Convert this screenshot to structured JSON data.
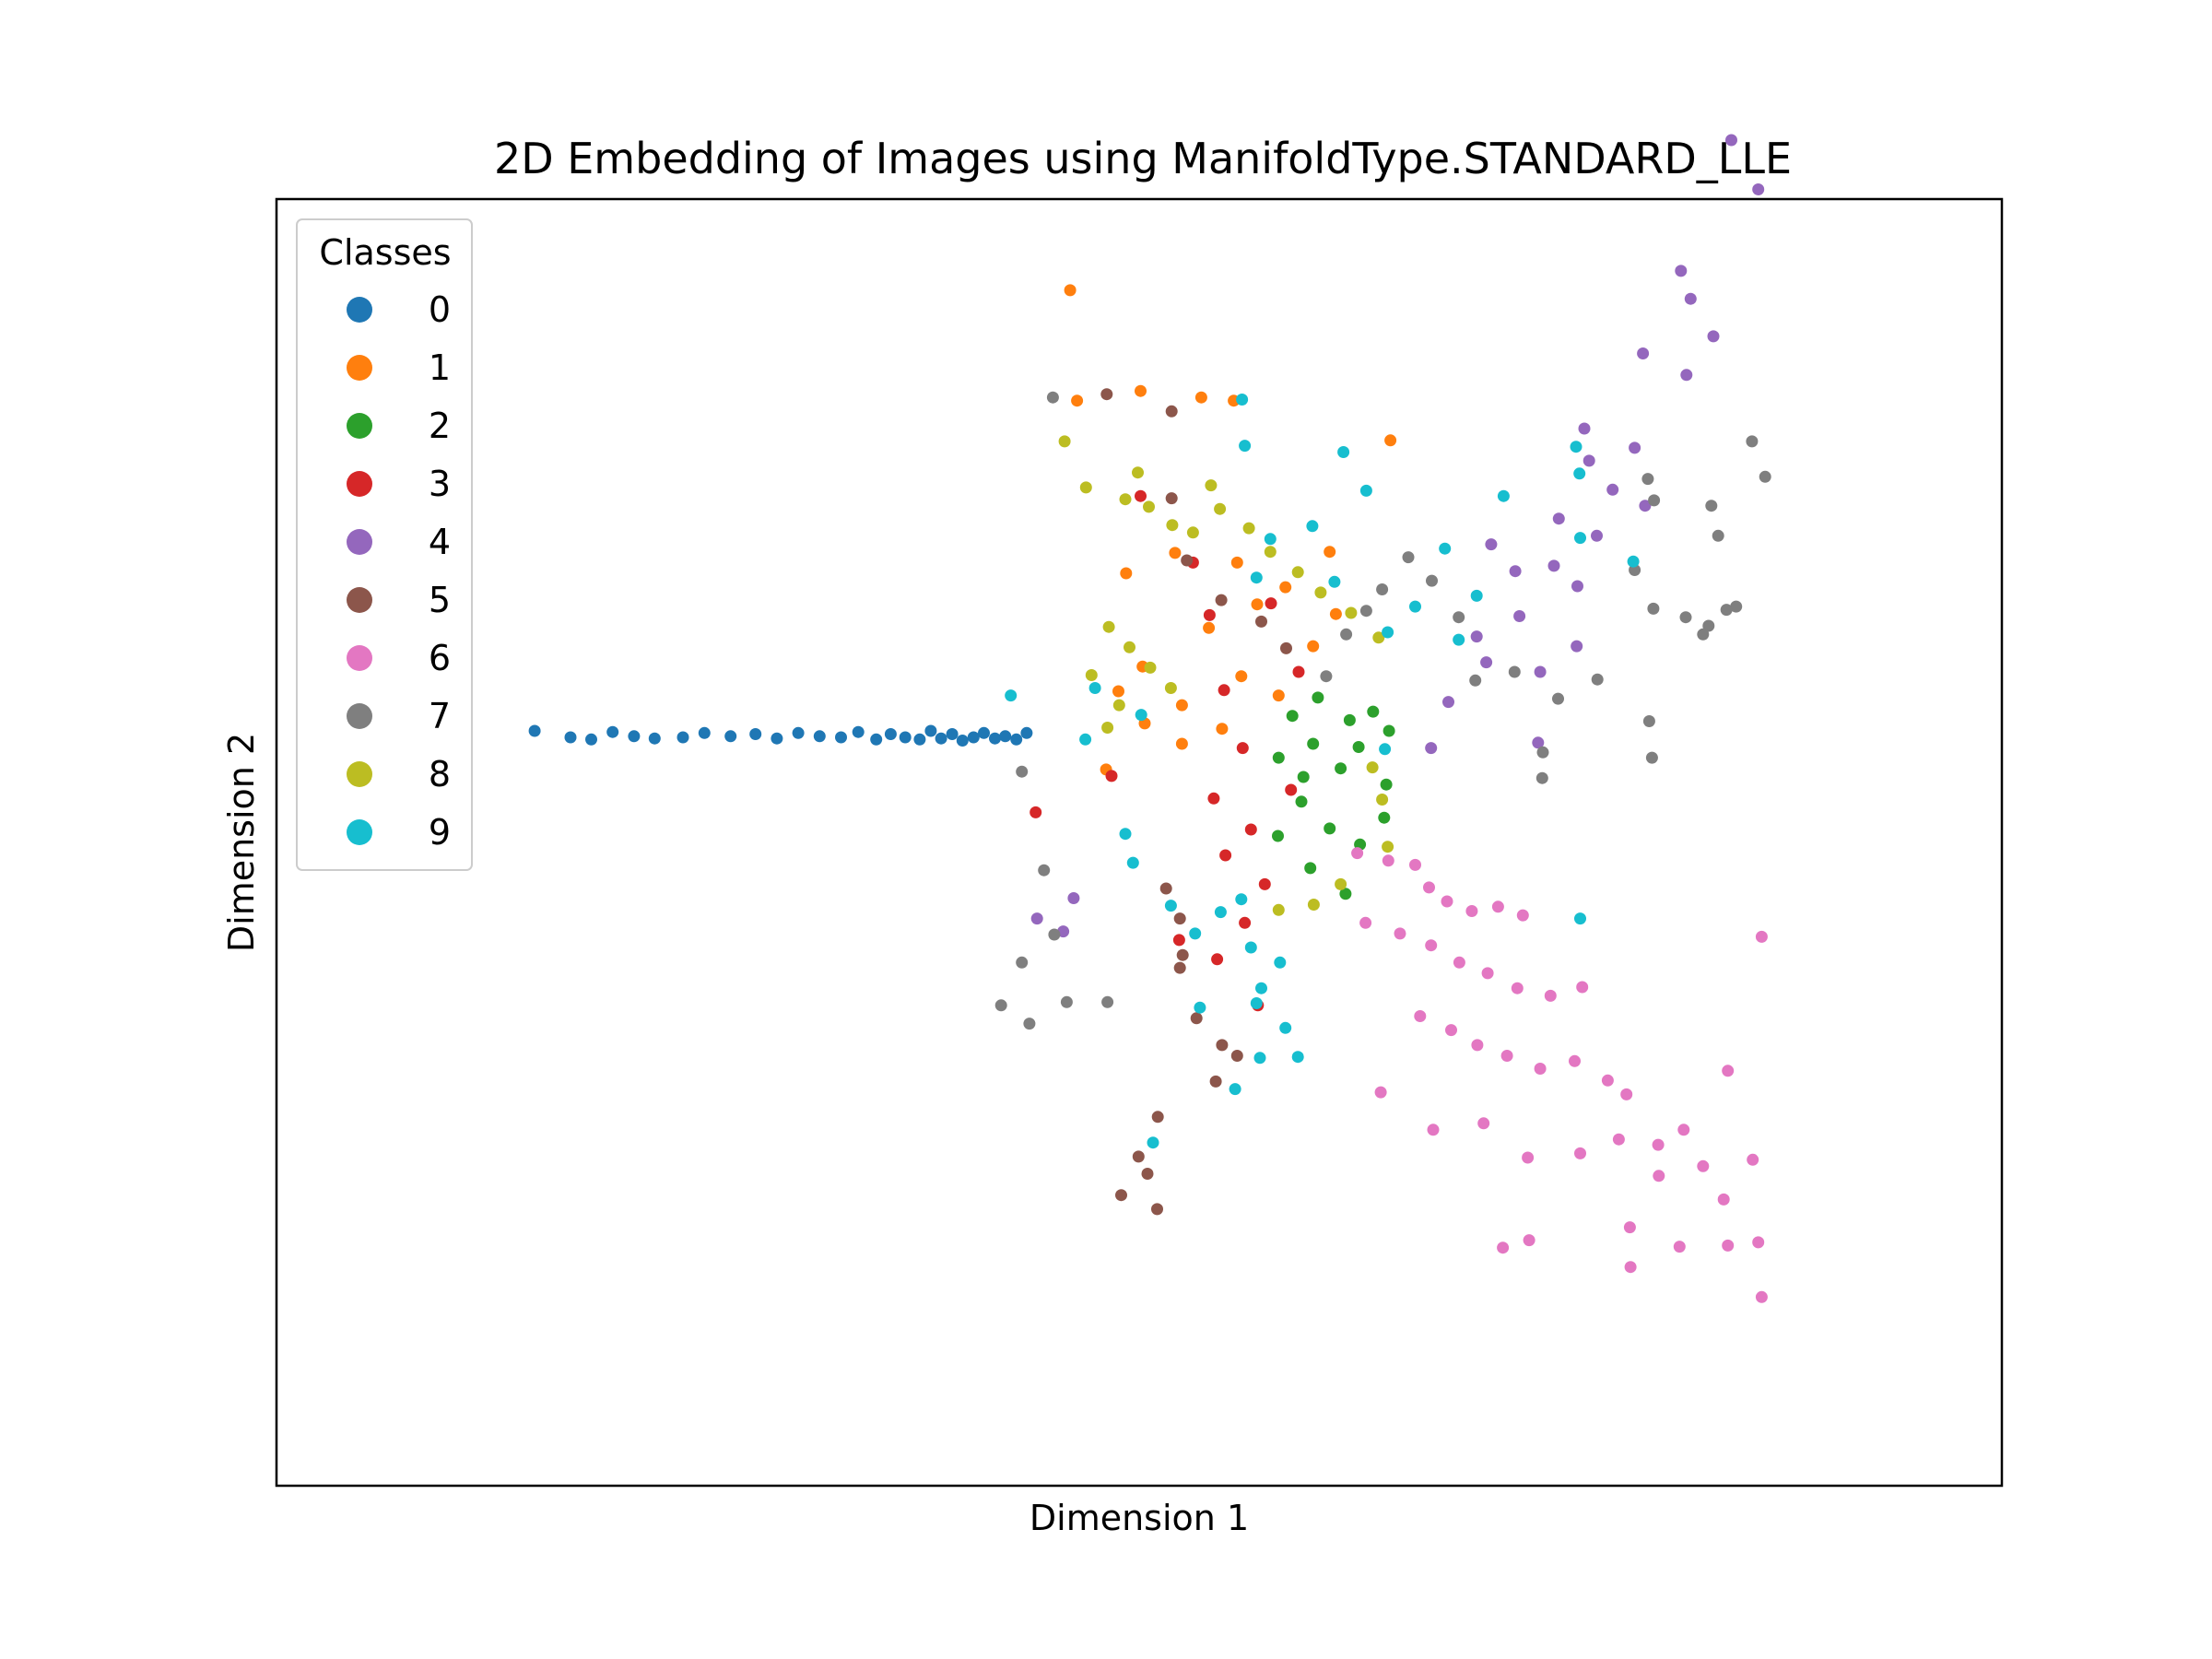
{
  "chart_data": {
    "type": "scatter",
    "title": "2D Embedding of Images using ManifoldType.STANDARD_LLE",
    "xlabel": "Dimension 1",
    "ylabel": "Dimension 2",
    "xticks": false,
    "yticks": false,
    "grid": false,
    "xlim": [
      -0.08,
      0.17
    ],
    "ylim": [
      -0.07,
      0.05
    ],
    "legend": {
      "title": "Classes",
      "placement": "upper left"
    },
    "series": [
      {
        "name": "0",
        "color": "#1f77b4",
        "points": [
          [
            -0.0426,
            0.0004
          ],
          [
            -0.0374,
            -0.0002
          ],
          [
            -0.0344,
            -0.0004
          ],
          [
            -0.0313,
            0.0003
          ],
          [
            -0.0282,
            -0.0001
          ],
          [
            -0.0252,
            -0.0003
          ],
          [
            -0.0211,
            -0.0002
          ],
          [
            -0.018,
            0.0002
          ],
          [
            -0.0142,
            -0.0001
          ],
          [
            -0.0106,
            0.0001
          ],
          [
            -0.0075,
            -0.0003
          ],
          [
            -0.0044,
            0.0002
          ],
          [
            -0.0013,
            -0.0001
          ],
          [
            0.0018,
            -0.0002
          ],
          [
            0.0043,
            0.0003
          ],
          [
            0.0069,
            -0.0004
          ],
          [
            0.009,
            0.0001
          ],
          [
            0.0111,
            -0.0002
          ],
          [
            0.0132,
            -0.0004
          ],
          [
            0.0148,
            0.0004
          ],
          [
            0.0163,
            -0.0003
          ],
          [
            0.0179,
            0.0001
          ],
          [
            0.0194,
            -0.0005
          ],
          [
            0.021,
            -0.0002
          ],
          [
            0.0225,
            0.0002
          ],
          [
            0.0241,
            -0.0003
          ],
          [
            0.0256,
            -0.0001
          ],
          [
            0.0272,
            -0.0004
          ],
          [
            0.0287,
            0.0002
          ]
        ]
      },
      {
        "name": "1",
        "color": "#ff7f0e",
        "points": [
          [
            0.035,
            0.0415
          ],
          [
            0.036,
            0.0312
          ],
          [
            0.0452,
            0.0321
          ],
          [
            0.054,
            0.0315
          ],
          [
            0.0587,
            0.0312
          ],
          [
            0.0431,
            0.0151
          ],
          [
            0.0502,
            0.017
          ],
          [
            0.0592,
            0.0161
          ],
          [
            0.0662,
            0.0138
          ],
          [
            0.0726,
            0.0171
          ],
          [
            0.0814,
            0.0275
          ],
          [
            0.0455,
            0.0064
          ],
          [
            0.042,
            0.0041
          ],
          [
            0.0512,
            0.0028
          ],
          [
            0.0598,
            0.0055
          ],
          [
            0.0652,
            0.0037
          ],
          [
            0.0702,
            0.0083
          ],
          [
            0.0458,
            0.0011
          ],
          [
            0.0512,
            -0.0008
          ],
          [
            0.057,
            0.0006
          ],
          [
            0.0402,
            -0.0032
          ],
          [
            0.0551,
            0.01
          ],
          [
            0.0621,
            0.0122
          ],
          [
            0.0735,
            0.0113
          ]
        ]
      },
      {
        "name": "2",
        "color": "#2ca02c",
        "points": [
          [
            0.0672,
            0.0018
          ],
          [
            0.0702,
            -0.0008
          ],
          [
            0.0742,
            -0.0031
          ],
          [
            0.0768,
            -0.0011
          ],
          [
            0.0789,
            0.0022
          ],
          [
            0.0808,
            -0.0046
          ],
          [
            0.0812,
            0.0004
          ],
          [
            0.0685,
            -0.0062
          ],
          [
            0.0726,
            -0.0087
          ],
          [
            0.077,
            -0.0102
          ],
          [
            0.0805,
            -0.0077
          ],
          [
            0.0698,
            -0.0124
          ],
          [
            0.0749,
            -0.0148
          ],
          [
            0.0651,
            -0.0094
          ],
          [
            0.0688,
            -0.0039
          ],
          [
            0.0755,
            0.0014
          ],
          [
            0.0709,
            0.0035
          ],
          [
            0.0652,
            -0.0021
          ]
        ]
      },
      {
        "name": "3",
        "color": "#d62728",
        "points": [
          [
            0.03,
            -0.0072
          ],
          [
            0.041,
            -0.0038
          ],
          [
            0.0452,
            0.0223
          ],
          [
            0.0528,
            0.0161
          ],
          [
            0.0552,
            0.0112
          ],
          [
            0.0573,
            0.0042
          ],
          [
            0.06,
            -0.0012
          ],
          [
            0.0558,
            -0.0059
          ],
          [
            0.0612,
            -0.0088
          ],
          [
            0.0575,
            -0.0112
          ],
          [
            0.0632,
            -0.0139
          ],
          [
            0.0603,
            -0.0175
          ],
          [
            0.0563,
            -0.0209
          ],
          [
            0.0622,
            -0.0252
          ],
          [
            0.0508,
            -0.0191
          ],
          [
            0.067,
            -0.0051
          ],
          [
            0.0681,
            0.0059
          ],
          [
            0.0641,
            0.0123
          ]
        ]
      },
      {
        "name": "4",
        "color": "#9467bd",
        "points": [
          [
            0.1308,
            0.0555
          ],
          [
            0.1347,
            0.0509
          ],
          [
            0.1235,
            0.0433
          ],
          [
            0.1249,
            0.0407
          ],
          [
            0.1282,
            0.0372
          ],
          [
            0.118,
            0.0356
          ],
          [
            0.1243,
            0.0336
          ],
          [
            0.1095,
            0.0286
          ],
          [
            0.1168,
            0.0268
          ],
          [
            0.1102,
            0.0256
          ],
          [
            0.1136,
            0.0229
          ],
          [
            0.1058,
            0.0202
          ],
          [
            0.1113,
            0.0186
          ],
          [
            0.1051,
            0.0158
          ],
          [
            0.1085,
            0.0139
          ],
          [
            0.0995,
            0.0153
          ],
          [
            0.1001,
            0.0111
          ],
          [
            0.0939,
            0.0092
          ],
          [
            0.0953,
            0.0068
          ],
          [
            0.1084,
            0.0083
          ],
          [
            0.0898,
            0.0031
          ],
          [
            0.0873,
            -0.0012
          ],
          [
            0.1028,
            -0.0007
          ],
          [
            0.1183,
            0.0214
          ],
          [
            0.1031,
            0.0059
          ],
          [
            0.096,
            0.0178
          ],
          [
            0.0302,
            -0.0171
          ],
          [
            0.0355,
            -0.0152
          ],
          [
            0.034,
            -0.0183
          ]
        ]
      },
      {
        "name": "5",
        "color": "#8c564b",
        "points": [
          [
            0.0403,
            0.0318
          ],
          [
            0.0497,
            0.0302
          ],
          [
            0.0497,
            0.0221
          ],
          [
            0.0519,
            0.0163
          ],
          [
            0.0569,
            0.0126
          ],
          [
            0.0627,
            0.0106
          ],
          [
            0.0663,
            0.0081
          ],
          [
            0.0489,
            -0.0143
          ],
          [
            0.0513,
            -0.0205
          ],
          [
            0.0509,
            -0.0217
          ],
          [
            0.0533,
            -0.0264
          ],
          [
            0.057,
            -0.0289
          ],
          [
            0.0561,
            -0.0323
          ],
          [
            0.0592,
            -0.0299
          ],
          [
            0.0477,
            -0.0356
          ],
          [
            0.0462,
            -0.0409
          ],
          [
            0.0449,
            -0.0393
          ],
          [
            0.0424,
            -0.0429
          ],
          [
            0.0476,
            -0.0442
          ],
          [
            0.0509,
            -0.0171
          ]
        ]
      },
      {
        "name": "6",
        "color": "#e377c2",
        "points": [
          [
            0.0766,
            -0.011
          ],
          [
            0.0811,
            -0.0117
          ],
          [
            0.085,
            -0.0121
          ],
          [
            0.087,
            -0.0142
          ],
          [
            0.0896,
            -0.0155
          ],
          [
            0.0932,
            -0.0164
          ],
          [
            0.097,
            -0.016
          ],
          [
            0.1006,
            -0.0168
          ],
          [
            0.0778,
            -0.0175
          ],
          [
            0.0828,
            -0.0185
          ],
          [
            0.0873,
            -0.0196
          ],
          [
            0.0914,
            -0.0212
          ],
          [
            0.0955,
            -0.0222
          ],
          [
            0.0998,
            -0.0236
          ],
          [
            0.1046,
            -0.0243
          ],
          [
            0.1092,
            -0.0235
          ],
          [
            0.0857,
            -0.0262
          ],
          [
            0.0902,
            -0.0275
          ],
          [
            0.094,
            -0.0289
          ],
          [
            0.0983,
            -0.0299
          ],
          [
            0.1031,
            -0.0311
          ],
          [
            0.1081,
            -0.0304
          ],
          [
            0.1129,
            -0.0322
          ],
          [
            0.1156,
            -0.0335
          ],
          [
            0.08,
            -0.0333
          ],
          [
            0.0876,
            -0.0368
          ],
          [
            0.0949,
            -0.0362
          ],
          [
            0.1013,
            -0.0394
          ],
          [
            0.1089,
            -0.039
          ],
          [
            0.1145,
            -0.0377
          ],
          [
            0.1202,
            -0.0382
          ],
          [
            0.1239,
            -0.0368
          ],
          [
            0.1267,
            -0.0402
          ],
          [
            0.1297,
            -0.0433
          ],
          [
            0.1339,
            -0.0396
          ],
          [
            0.1303,
            -0.0313
          ],
          [
            0.0977,
            -0.0478
          ],
          [
            0.1015,
            -0.0471
          ],
          [
            0.1162,
            -0.0496
          ],
          [
            0.1233,
            -0.0477
          ],
          [
            0.1303,
            -0.0476
          ],
          [
            0.1347,
            -0.0473
          ],
          [
            0.1352,
            -0.0524
          ],
          [
            0.1352,
            -0.0188
          ],
          [
            0.1161,
            -0.0459
          ],
          [
            0.1203,
            -0.0411
          ]
        ]
      },
      {
        "name": "7",
        "color": "#7f7f7f",
        "points": [
          [
            0.0325,
            0.0315
          ],
          [
            0.1289,
            0.0186
          ],
          [
            0.1338,
            0.0274
          ],
          [
            0.1357,
            0.0241
          ],
          [
            0.1279,
            0.0214
          ],
          [
            0.1187,
            0.0239
          ],
          [
            0.1196,
            0.0219
          ],
          [
            0.1168,
            0.0154
          ],
          [
            0.1195,
            0.0118
          ],
          [
            0.1242,
            0.011
          ],
          [
            0.1275,
            0.0102
          ],
          [
            0.1315,
            0.012
          ],
          [
            0.1267,
            0.0094
          ],
          [
            0.1301,
            0.0117
          ],
          [
            0.1189,
            0.0013
          ],
          [
            0.1193,
            -0.0021
          ],
          [
            0.1114,
            0.0052
          ],
          [
            0.1057,
            0.0034
          ],
          [
            0.1035,
            -0.0016
          ],
          [
            0.0994,
            0.0059
          ],
          [
            0.0937,
            0.0051
          ],
          [
            0.0913,
            0.011
          ],
          [
            0.0874,
            0.0144
          ],
          [
            0.084,
            0.0166
          ],
          [
            0.0802,
            0.0136
          ],
          [
            0.0779,
            0.0116
          ],
          [
            0.075,
            0.0094
          ],
          [
            0.0721,
            0.0055
          ],
          [
            0.028,
            -0.0034
          ],
          [
            0.0312,
            -0.0126
          ],
          [
            0.0327,
            -0.0186
          ],
          [
            0.028,
            -0.0212
          ],
          [
            0.025,
            -0.0252
          ],
          [
            0.0291,
            -0.0269
          ],
          [
            0.0345,
            -0.0249
          ],
          [
            0.0404,
            -0.0249
          ],
          [
            0.1034,
            -0.004
          ]
        ]
      },
      {
        "name": "8",
        "color": "#bcbd22",
        "points": [
          [
            0.0342,
            0.0274
          ],
          [
            0.0373,
            0.0231
          ],
          [
            0.043,
            0.022
          ],
          [
            0.0448,
            0.0245
          ],
          [
            0.0464,
            0.0213
          ],
          [
            0.0498,
            0.0196
          ],
          [
            0.0528,
            0.0189
          ],
          [
            0.0554,
            0.0233
          ],
          [
            0.0567,
            0.0211
          ],
          [
            0.0609,
            0.0193
          ],
          [
            0.064,
            0.0171
          ],
          [
            0.068,
            0.0152
          ],
          [
            0.0713,
            0.0133
          ],
          [
            0.0757,
            0.0114
          ],
          [
            0.0797,
            0.0091
          ],
          [
            0.0406,
            0.0101
          ],
          [
            0.0436,
            0.0082
          ],
          [
            0.0466,
            0.0063
          ],
          [
            0.0496,
            0.0044
          ],
          [
            0.0381,
            0.0056
          ],
          [
            0.0421,
            0.0028
          ],
          [
            0.0404,
            0.0007
          ],
          [
            0.0788,
            -0.003
          ],
          [
            0.0802,
            -0.006
          ],
          [
            0.081,
            -0.0104
          ],
          [
            0.0742,
            -0.0139
          ],
          [
            0.0703,
            -0.0158
          ],
          [
            0.0652,
            -0.0163
          ]
        ]
      },
      {
        "name": "9",
        "color": "#17becf",
        "points": [
          [
            0.0599,
            0.0313
          ],
          [
            0.0603,
            0.027
          ],
          [
            0.0746,
            0.0264
          ],
          [
            0.0779,
            0.0228
          ],
          [
            0.0701,
            0.0195
          ],
          [
            0.064,
            0.0183
          ],
          [
            0.062,
            0.0147
          ],
          [
            0.0733,
            0.0143
          ],
          [
            0.0893,
            0.0174
          ],
          [
            0.0978,
            0.0223
          ],
          [
            0.1083,
            0.0269
          ],
          [
            0.1088,
            0.0244
          ],
          [
            0.1089,
            0.0184
          ],
          [
            0.1166,
            0.0162
          ],
          [
            0.0939,
            0.013
          ],
          [
            0.0913,
            0.0089
          ],
          [
            0.085,
            0.012
          ],
          [
            0.081,
            0.0096
          ],
          [
            0.0264,
            0.0037
          ],
          [
            0.0386,
            0.0044
          ],
          [
            0.0372,
            -0.0004
          ],
          [
            0.0453,
            0.0019
          ],
          [
            0.0806,
            -0.0013
          ],
          [
            0.043,
            -0.0092
          ],
          [
            0.0441,
            -0.0119
          ],
          [
            0.0496,
            -0.0159
          ],
          [
            0.0531,
            -0.0185
          ],
          [
            0.0568,
            -0.0165
          ],
          [
            0.0598,
            -0.0153
          ],
          [
            0.0612,
            -0.0198
          ],
          [
            0.0654,
            -0.0212
          ],
          [
            0.0627,
            -0.0236
          ],
          [
            0.0662,
            -0.0273
          ],
          [
            0.0625,
            -0.0301
          ],
          [
            0.0589,
            -0.033
          ],
          [
            0.0538,
            -0.0254
          ],
          [
            0.047,
            -0.038
          ],
          [
            0.068,
            -0.03
          ],
          [
            0.062,
            -0.025
          ],
          [
            0.1089,
            -0.0171
          ]
        ]
      }
    ]
  }
}
